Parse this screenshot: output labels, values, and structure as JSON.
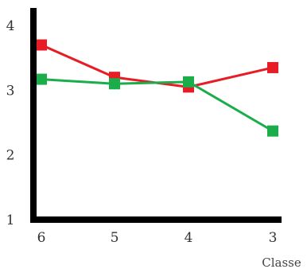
{
  "chart_data": {
    "type": "line",
    "categories": [
      "6",
      "5",
      "4",
      "3"
    ],
    "series": [
      {
        "values": [
          3.7,
          3.2,
          3.05,
          3.35
        ],
        "color": "#e81c24"
      },
      {
        "values": [
          3.17,
          3.1,
          3.13,
          2.37
        ],
        "color": "#1aad4a"
      }
    ],
    "title": "",
    "xlabel": "Classe",
    "ylabel": "",
    "ylim": [
      1,
      4
    ],
    "yticks": [
      "1",
      "2",
      "3",
      "4"
    ],
    "grid": false,
    "axis_color": "#000000"
  }
}
